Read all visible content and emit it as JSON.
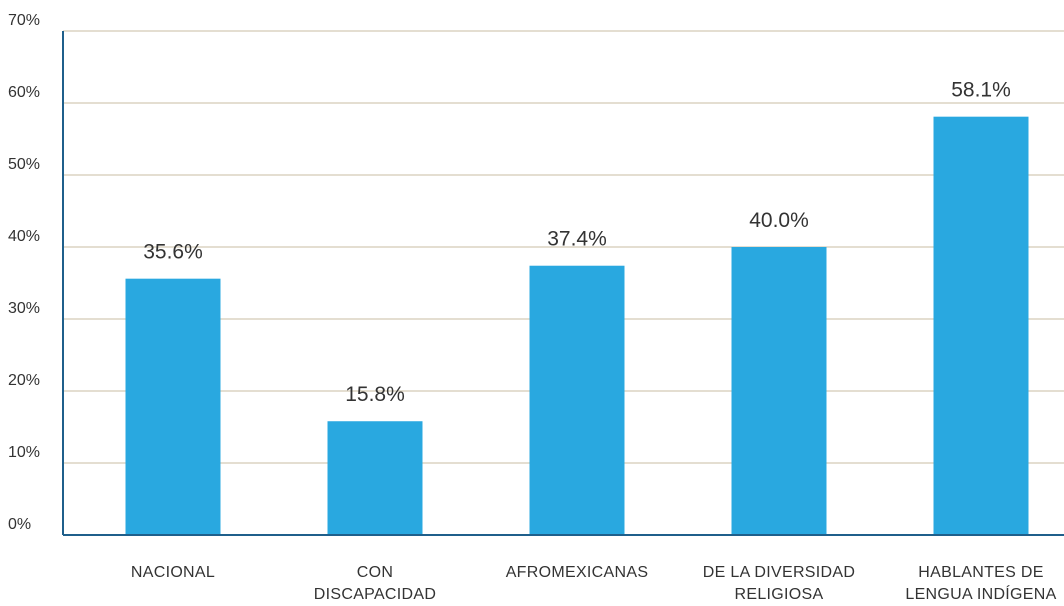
{
  "chart_data": {
    "type": "bar",
    "categories": [
      "NACIONAL",
      "CON\nDISCAPACIDAD",
      "AFROMEXICANAS",
      "DE LA DIVERSIDAD\nRELIGIOSA",
      "HABLANTES DE\nLENGUA INDÍGENA"
    ],
    "values": [
      35.6,
      15.8,
      37.4,
      40.0,
      58.1
    ],
    "value_labels": [
      "35.6%",
      "15.8%",
      "37.4%",
      "40.0%",
      "58.1%"
    ],
    "color": "#29a8e0",
    "ylim": [
      0,
      70
    ],
    "yticks": [
      {
        "value": 0,
        "label": "0%"
      },
      {
        "value": 10,
        "label": "10%"
      },
      {
        "value": 20,
        "label": "20%"
      },
      {
        "value": 30,
        "label": "30%"
      },
      {
        "value": 40,
        "label": "40%"
      },
      {
        "value": 50,
        "label": "50%"
      },
      {
        "value": 60,
        "label": "60%"
      },
      {
        "value": 70,
        "label": "70%"
      }
    ],
    "grid": true
  }
}
